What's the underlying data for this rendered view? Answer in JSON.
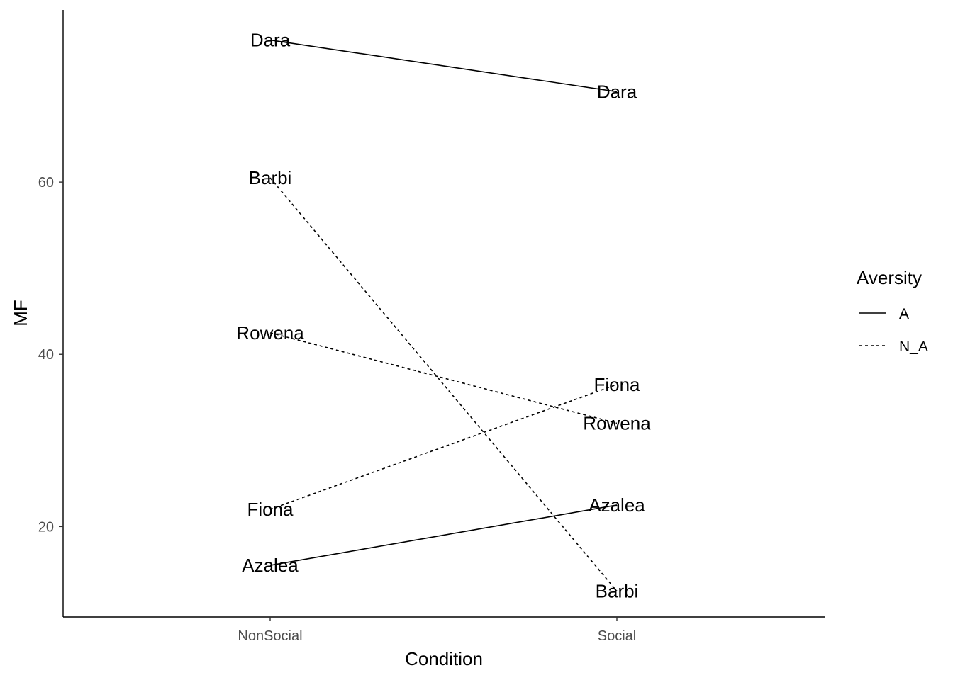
{
  "chart_data": {
    "type": "line",
    "xlabel": "Condition",
    "ylabel": "MF",
    "categories": [
      "NonSocial",
      "Social"
    ],
    "ylim": [
      9.5,
      80
    ],
    "yticks": [
      20,
      40,
      60
    ],
    "grid": false,
    "legend": {
      "title": "Aversity",
      "placement": "right",
      "entries": [
        {
          "label": "A",
          "linetype": "solid"
        },
        {
          "label": "N_A",
          "linetype": "dashed"
        }
      ]
    },
    "series": [
      {
        "name": "Dara",
        "aversity": "A",
        "values": [
          76.5,
          70.5
        ]
      },
      {
        "name": "Barbi",
        "aversity": "N_A",
        "values": [
          60.5,
          12.5
        ]
      },
      {
        "name": "Rowena",
        "aversity": "N_A",
        "values": [
          42.5,
          32
        ]
      },
      {
        "name": "Fiona",
        "aversity": "N_A",
        "values": [
          22,
          36.5
        ]
      },
      {
        "name": "Azalea",
        "aversity": "A",
        "values": [
          15.5,
          22.5
        ]
      }
    ],
    "line_color": "#000000"
  }
}
